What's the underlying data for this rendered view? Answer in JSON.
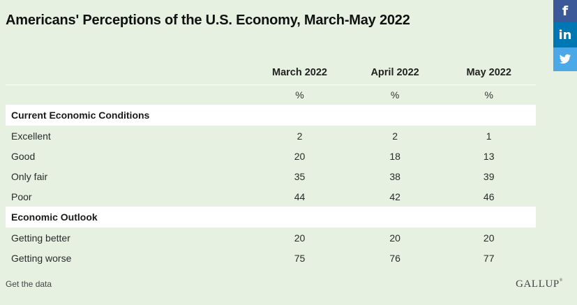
{
  "title": "Americans' Perceptions of the U.S. Economy, March-May 2022",
  "share": {
    "facebook_icon": "facebook-icon",
    "linkedin_icon": "linkedin-icon",
    "twitter_icon": "twitter-icon",
    "facebook_glyph": "f",
    "linkedin_glyph": "in",
    "colors": {
      "facebook": "#3b5998",
      "linkedin": "#0077b5",
      "twitter": "#4aa9e6"
    }
  },
  "table": {
    "columns": [
      "March 2022",
      "April 2022",
      "May 2022"
    ],
    "units": [
      "%",
      "%",
      "%"
    ],
    "sections": [
      {
        "heading": "Current Economic Conditions",
        "rows": [
          {
            "label": "Excellent",
            "values": [
              "2",
              "2",
              "1"
            ]
          },
          {
            "label": "Good",
            "values": [
              "20",
              "18",
              "13"
            ]
          },
          {
            "label": "Only fair",
            "values": [
              "35",
              "38",
              "39"
            ]
          },
          {
            "label": "Poor",
            "values": [
              "44",
              "42",
              "46"
            ]
          }
        ]
      },
      {
        "heading": "Economic Outlook",
        "rows": [
          {
            "label": "Getting better",
            "values": [
              "20",
              "20",
              "20"
            ]
          },
          {
            "label": "Getting worse",
            "values": [
              "75",
              "76",
              "77"
            ]
          }
        ]
      }
    ]
  },
  "footer": {
    "get_data_label": "Get the data",
    "logo_text": "GALLUP",
    "logo_mark": "®"
  },
  "colors": {
    "background": "#e6f1e2",
    "section_background": "#ffffff"
  }
}
